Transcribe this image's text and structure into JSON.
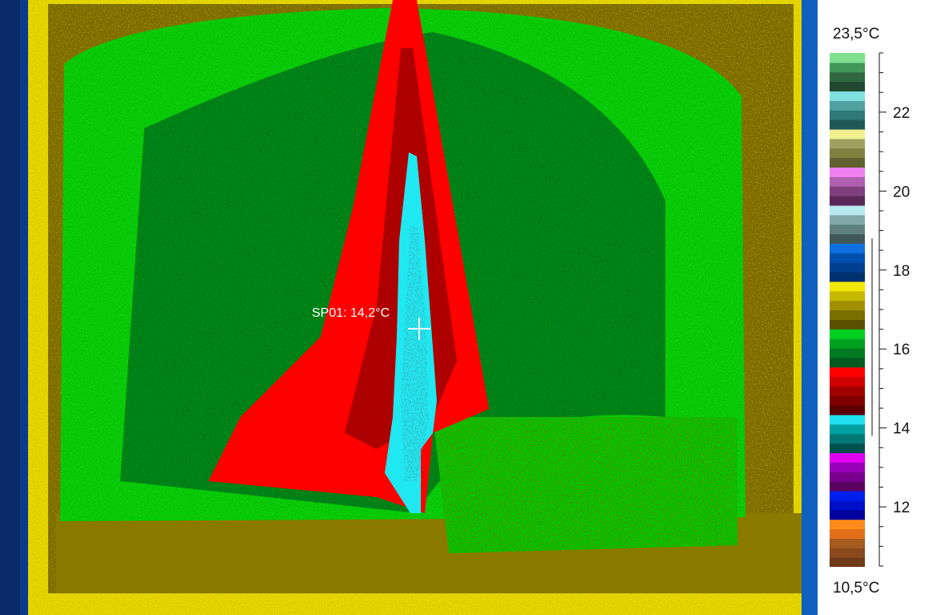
{
  "spot": {
    "label": "SP01: 14,2°C",
    "temperature": 14.2,
    "unit": "°C"
  },
  "legend": {
    "max_label": "23,5°C",
    "min_label": "10,5°C",
    "range": [
      10.5,
      23.5
    ],
    "tick_labels": [
      "22",
      "20",
      "18",
      "16",
      "14",
      "12"
    ],
    "tick_values": [
      22,
      20,
      18,
      16,
      14,
      12
    ],
    "palette": [
      "#6f3a18",
      "#8a4a1e",
      "#a55a20",
      "#e0701a",
      "#ff8c1a",
      "#0000a0",
      "#0010c8",
      "#0020f0",
      "#5a0060",
      "#7a0090",
      "#9a00b8",
      "#e000f0",
      "#005050",
      "#007878",
      "#00a0a0",
      "#20e0f0",
      "#5a0000",
      "#800000",
      "#a00000",
      "#d00000",
      "#ff0000",
      "#005a20",
      "#007a20",
      "#00a020",
      "#00d020",
      "#5a5000",
      "#7a7000",
      "#a09000",
      "#c8b800",
      "#f0e800",
      "#003070",
      "#004090",
      "#0050b0",
      "#1070e0",
      "#405858",
      "#608080",
      "#80a8a8",
      "#b8e8f0",
      "#5a2858",
      "#804080",
      "#b060b0",
      "#f080f0",
      "#606030",
      "#808040",
      "#a0a060",
      "#f0f090",
      "#205858",
      "#307878",
      "#50a0a0",
      "#80e0e0",
      "#204830",
      "#306840",
      "#409858",
      "#80e090"
    ],
    "colors": {
      "blue": "#0a3a8a",
      "yellow": "#ffef00",
      "olive": "#7a6a00",
      "green": "#00c800",
      "dark_green": "#006a10",
      "red": "#ff0000",
      "dark_red": "#a00000",
      "cyan": "#20e8f0",
      "teal": "#208890"
    }
  }
}
